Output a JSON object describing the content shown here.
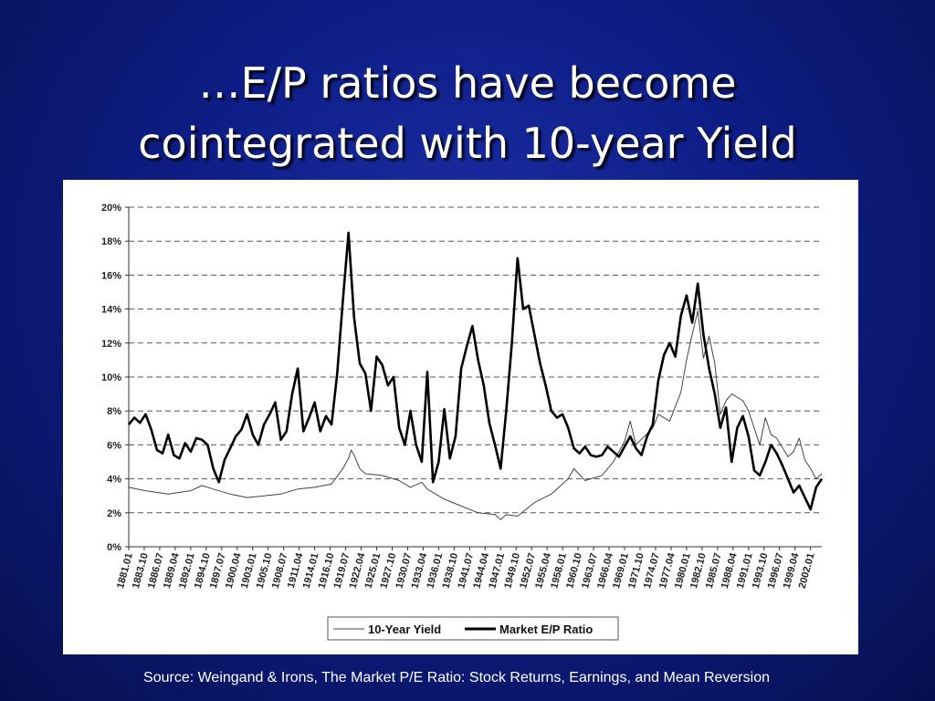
{
  "slide": {
    "title_line1": "…E/P ratios have become",
    "title_line2": "cointegrated with 10-year Yield",
    "source": "Source: Weingand & Irons, The Market P/E Ratio: Stock Returns, Earnings, and Mean Reversion"
  },
  "chart_data": {
    "type": "line",
    "title": "",
    "xlabel": "",
    "ylabel": "",
    "ylim": [
      0,
      20
    ],
    "y_ticks": [
      "0%",
      "2%",
      "4%",
      "6%",
      "8%",
      "10%",
      "12%",
      "14%",
      "16%",
      "18%",
      "20%"
    ],
    "grid": "horizontal dashed",
    "legend_position": "bottom-center",
    "x_start": 1881,
    "x_end": 2004,
    "x_tick_labels": [
      "1881.01",
      "1883.10",
      "1886.07",
      "1889.04",
      "1892.01",
      "1894.10",
      "1897.07",
      "1900.04",
      "1903.01",
      "1905.10",
      "1908.07",
      "1911.04",
      "1914.01",
      "1916.10",
      "1919.07",
      "1922.04",
      "1925.01",
      "1927.10",
      "1930.07",
      "1933.04",
      "1936.01",
      "1938.10",
      "1941.07",
      "1944.04",
      "1947.01",
      "1949.10",
      "1952.07",
      "1955.04",
      "1958.01",
      "1960.10",
      "1963.07",
      "1966.04",
      "1969.01",
      "1971.10",
      "1974.07",
      "1977.04",
      "1980.01",
      "1982.10",
      "1985.07",
      "1988.04",
      "1991.01",
      "1993.10",
      "1996.07",
      "1999.04",
      "2002.01"
    ],
    "series": [
      {
        "name": "10-Year Yield",
        "color": "#444444",
        "style": "thin",
        "points": [
          [
            1881,
            3.5
          ],
          [
            1884,
            3.3
          ],
          [
            1888,
            3.1
          ],
          [
            1892,
            3.3
          ],
          [
            1894,
            3.6
          ],
          [
            1896,
            3.4
          ],
          [
            1899,
            3.1
          ],
          [
            1902,
            2.9
          ],
          [
            1905,
            3.0
          ],
          [
            1908,
            3.1
          ],
          [
            1911,
            3.4
          ],
          [
            1914,
            3.5
          ],
          [
            1917,
            3.7
          ],
          [
            1919,
            4.6
          ],
          [
            1920,
            5.2
          ],
          [
            1920.5,
            5.7
          ],
          [
            1921,
            5.4
          ],
          [
            1922,
            4.6
          ],
          [
            1923,
            4.3
          ],
          [
            1926,
            4.2
          ],
          [
            1929,
            3.9
          ],
          [
            1931,
            3.5
          ],
          [
            1933,
            3.8
          ],
          [
            1934,
            3.4
          ],
          [
            1937,
            2.8
          ],
          [
            1940,
            2.4
          ],
          [
            1943,
            2.0
          ],
          [
            1946,
            1.9
          ],
          [
            1947,
            1.6
          ],
          [
            1948,
            1.9
          ],
          [
            1950,
            1.8
          ],
          [
            1953,
            2.6
          ],
          [
            1956,
            3.1
          ],
          [
            1959,
            4.0
          ],
          [
            1960,
            4.6
          ],
          [
            1962,
            3.9
          ],
          [
            1965,
            4.2
          ],
          [
            1967,
            5.0
          ],
          [
            1969,
            6.2
          ],
          [
            1970,
            7.4
          ],
          [
            1971,
            6.0
          ],
          [
            1974,
            7.0
          ],
          [
            1975,
            7.8
          ],
          [
            1977,
            7.4
          ],
          [
            1979,
            9.1
          ],
          [
            1980,
            11.0
          ],
          [
            1981,
            12.5
          ],
          [
            1982,
            13.9
          ],
          [
            1983,
            11.1
          ],
          [
            1984,
            12.4
          ],
          [
            1985,
            10.8
          ],
          [
            1986,
            7.8
          ],
          [
            1987,
            8.6
          ],
          [
            1988,
            9.0
          ],
          [
            1990,
            8.6
          ],
          [
            1991,
            8.0
          ],
          [
            1993,
            6.0
          ],
          [
            1994,
            7.6
          ],
          [
            1995,
            6.6
          ],
          [
            1996,
            6.4
          ],
          [
            1998,
            5.3
          ],
          [
            1999,
            5.6
          ],
          [
            2000,
            6.4
          ],
          [
            2001,
            5.1
          ],
          [
            2002,
            4.6
          ],
          [
            2003,
            4.0
          ],
          [
            2004,
            4.3
          ]
        ]
      },
      {
        "name": "Market E/P Ratio",
        "color": "#000000",
        "style": "thick",
        "points": [
          [
            1881,
            7.2
          ],
          [
            1882,
            7.6
          ],
          [
            1883,
            7.3
          ],
          [
            1884,
            7.8
          ],
          [
            1885,
            6.9
          ],
          [
            1886,
            5.7
          ],
          [
            1887,
            5.5
          ],
          [
            1888,
            6.6
          ],
          [
            1889,
            5.4
          ],
          [
            1890,
            5.2
          ],
          [
            1891,
            6.1
          ],
          [
            1892,
            5.6
          ],
          [
            1893,
            6.4
          ],
          [
            1894,
            6.3
          ],
          [
            1895,
            6.0
          ],
          [
            1896,
            4.6
          ],
          [
            1897,
            3.8
          ],
          [
            1898,
            5.1
          ],
          [
            1899,
            5.8
          ],
          [
            1900,
            6.5
          ],
          [
            1901,
            6.9
          ],
          [
            1902,
            7.8
          ],
          [
            1903,
            6.6
          ],
          [
            1904,
            6.0
          ],
          [
            1905,
            7.2
          ],
          [
            1906,
            7.8
          ],
          [
            1907,
            8.5
          ],
          [
            1908,
            6.3
          ],
          [
            1909,
            6.8
          ],
          [
            1910,
            9.0
          ],
          [
            1911,
            10.5
          ],
          [
            1912,
            6.8
          ],
          [
            1913,
            7.6
          ],
          [
            1914,
            8.5
          ],
          [
            1915,
            6.8
          ],
          [
            1916,
            7.7
          ],
          [
            1917,
            7.2
          ],
          [
            1918,
            10.2
          ],
          [
            1919,
            14.5
          ],
          [
            1920,
            18.5
          ],
          [
            1920.5,
            16.0
          ],
          [
            1921,
            13.5
          ],
          [
            1922,
            10.8
          ],
          [
            1923,
            10.2
          ],
          [
            1924,
            8.0
          ],
          [
            1925,
            11.2
          ],
          [
            1926,
            10.7
          ],
          [
            1927,
            9.5
          ],
          [
            1928,
            10.0
          ],
          [
            1929,
            7.0
          ],
          [
            1930,
            6.0
          ],
          [
            1931,
            8.0
          ],
          [
            1932,
            6.0
          ],
          [
            1933,
            5.0
          ],
          [
            1934,
            10.3
          ],
          [
            1935,
            3.8
          ],
          [
            1936,
            5.0
          ],
          [
            1937,
            8.1
          ],
          [
            1938,
            5.2
          ],
          [
            1939,
            6.5
          ],
          [
            1940,
            10.5
          ],
          [
            1941,
            11.8
          ],
          [
            1942,
            13.0
          ],
          [
            1943,
            11.0
          ],
          [
            1944,
            9.5
          ],
          [
            1945,
            7.3
          ],
          [
            1946,
            6.0
          ],
          [
            1947,
            4.6
          ],
          [
            1948,
            8.0
          ],
          [
            1949,
            12.0
          ],
          [
            1950,
            17.0
          ],
          [
            1951,
            14.0
          ],
          [
            1952,
            14.2
          ],
          [
            1953,
            12.5
          ],
          [
            1954,
            10.8
          ],
          [
            1955,
            9.5
          ],
          [
            1956,
            8.0
          ],
          [
            1957,
            7.6
          ],
          [
            1958,
            7.8
          ],
          [
            1959,
            7.0
          ],
          [
            1960,
            5.8
          ],
          [
            1961,
            5.5
          ],
          [
            1962,
            5.9
          ],
          [
            1963,
            5.4
          ],
          [
            1964,
            5.3
          ],
          [
            1965,
            5.4
          ],
          [
            1966,
            5.9
          ],
          [
            1967,
            5.6
          ],
          [
            1968,
            5.3
          ],
          [
            1969,
            5.9
          ],
          [
            1970,
            6.5
          ],
          [
            1971,
            5.8
          ],
          [
            1972,
            5.4
          ],
          [
            1973,
            6.5
          ],
          [
            1974,
            7.2
          ],
          [
            1975,
            9.8
          ],
          [
            1976,
            11.3
          ],
          [
            1977,
            12.0
          ],
          [
            1978,
            11.2
          ],
          [
            1979,
            13.6
          ],
          [
            1980,
            14.8
          ],
          [
            1981,
            13.2
          ],
          [
            1982,
            15.5
          ],
          [
            1983,
            12.5
          ],
          [
            1984,
            10.5
          ],
          [
            1985,
            9.0
          ],
          [
            1986,
            7.0
          ],
          [
            1987,
            8.2
          ],
          [
            1988,
            5.0
          ],
          [
            1989,
            7.0
          ],
          [
            1990,
            7.7
          ],
          [
            1991,
            6.5
          ],
          [
            1992,
            4.5
          ],
          [
            1993,
            4.2
          ],
          [
            1994,
            5.0
          ],
          [
            1995,
            6.0
          ],
          [
            1996,
            5.5
          ],
          [
            1997,
            4.8
          ],
          [
            1998,
            4.0
          ],
          [
            1999,
            3.2
          ],
          [
            2000,
            3.6
          ],
          [
            2001,
            2.9
          ],
          [
            2002,
            2.2
          ],
          [
            2003,
            3.5
          ],
          [
            2004,
            4.0
          ]
        ]
      }
    ]
  }
}
